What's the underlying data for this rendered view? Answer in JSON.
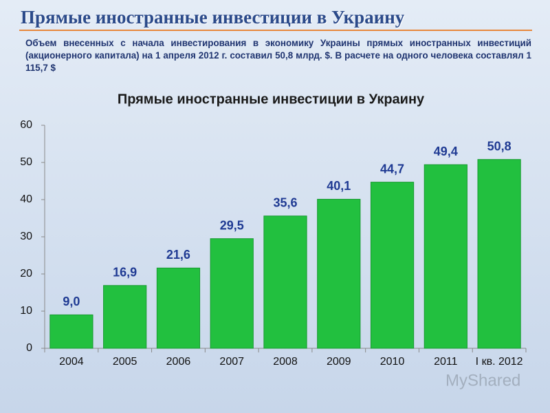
{
  "header": {
    "title": "Прямые иностранные инвестиции в Украину",
    "description": "Объем внесенных с начала инвестирования в экономику Украины прямых иностранных инвестиций (акционерного капитала) на 1 апреля 2012 г. составил 50,8 млрд. $. В расчете на одного человека составлял 1 115,7 $"
  },
  "watermark": "MyShared",
  "chart_data": {
    "type": "bar",
    "title": "Прямые иностранные инвестиции в Украину",
    "categories": [
      "2004",
      "2005",
      "2006",
      "2007",
      "2008",
      "2009",
      "2010",
      "2011",
      "I кв. 2012"
    ],
    "values": [
      9.0,
      16.9,
      21.6,
      29.5,
      35.6,
      40.1,
      44.7,
      49.4,
      50.8
    ],
    "value_labels": [
      "9,0",
      "16,9",
      "21,6",
      "29,5",
      "35,6",
      "40,1",
      "44,7",
      "49,4",
      "50,8"
    ],
    "color": "#22c03f",
    "ylim": [
      0,
      60
    ],
    "yticks": [
      0,
      10,
      20,
      30,
      40,
      50,
      60
    ],
    "grid": false
  }
}
